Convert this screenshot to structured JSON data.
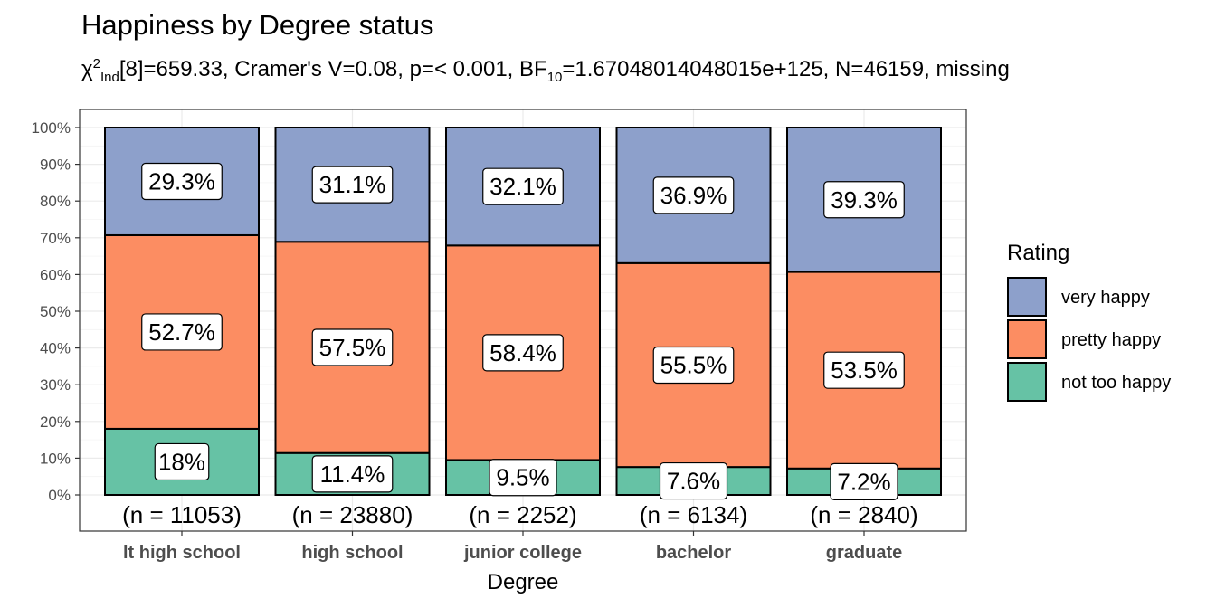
{
  "chart_data": {
    "type": "bar",
    "stacked": true,
    "title": "Happiness by Degree status",
    "subtitle": {
      "stat_symbol": "χ",
      "stat_sup": "2",
      "stat_sub": "Ind",
      "text_a": "[8]=659.33, Cramer's V=0.08, p=< 0.001, BF",
      "bf_sub": "10",
      "text_b": "=1.67048014048015e+125, N=46159, missing"
    },
    "xlabel": "Degree",
    "ylabel": "",
    "ylim": [
      0,
      100
    ],
    "yticks": [
      "0%",
      "10%",
      "20%",
      "30%",
      "40%",
      "50%",
      "60%",
      "70%",
      "80%",
      "90%",
      "100%"
    ],
    "grid": true,
    "legend_title": "Rating",
    "legend_position": "right",
    "categories": [
      "lt high school",
      "high school",
      "junior college",
      "bachelor",
      "graduate"
    ],
    "counts": [
      "(n = 11053)",
      "(n = 23880)",
      "(n = 2252)",
      "(n = 6134)",
      "(n = 2840)"
    ],
    "series": [
      {
        "name": "not too happy",
        "color": "#66c2a5",
        "values": [
          18.0,
          11.4,
          9.5,
          7.6,
          7.2
        ],
        "labels": [
          "18%",
          "11.4%",
          "9.5%",
          "7.6%",
          "7.2%"
        ]
      },
      {
        "name": "pretty happy",
        "color": "#fc8d62",
        "values": [
          52.7,
          57.5,
          58.4,
          55.5,
          53.5
        ],
        "labels": [
          "52.7%",
          "57.5%",
          "58.4%",
          "55.5%",
          "53.5%"
        ]
      },
      {
        "name": "very happy",
        "color": "#8da0cb",
        "values": [
          29.3,
          31.1,
          32.1,
          36.9,
          39.3
        ],
        "labels": [
          "29.3%",
          "31.1%",
          "32.1%",
          "36.9%",
          "39.3%"
        ]
      }
    ],
    "legend_order": [
      "very happy",
      "pretty happy",
      "not too happy"
    ]
  }
}
